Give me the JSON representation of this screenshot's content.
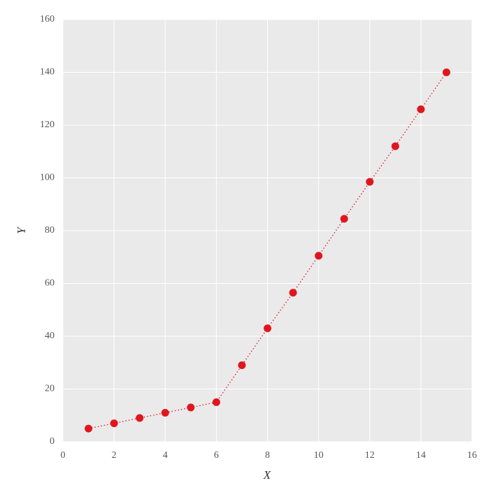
{
  "chart_data": {
    "type": "line",
    "x_label": "X",
    "y_label": "Y",
    "x": [
      1,
      2,
      3,
      4,
      5,
      6,
      7,
      8,
      9,
      10,
      11,
      12,
      13,
      14,
      15
    ],
    "series": [
      {
        "color": "#e0161e",
        "values": [
          5,
          7,
          9,
          11,
          13,
          15,
          29,
          43,
          56.5,
          70.5,
          84.5,
          98.5,
          112,
          126,
          140
        ]
      }
    ],
    "xlim": [
      0,
      16
    ],
    "xticks": [
      0,
      2,
      4,
      6,
      8,
      10,
      12,
      14,
      16
    ],
    "ylim": [
      0,
      160
    ],
    "yticks": [
      0,
      20,
      40,
      60,
      80,
      100,
      120,
      140,
      160
    ],
    "grid": true,
    "markers": true,
    "line_style": "dotted"
  }
}
